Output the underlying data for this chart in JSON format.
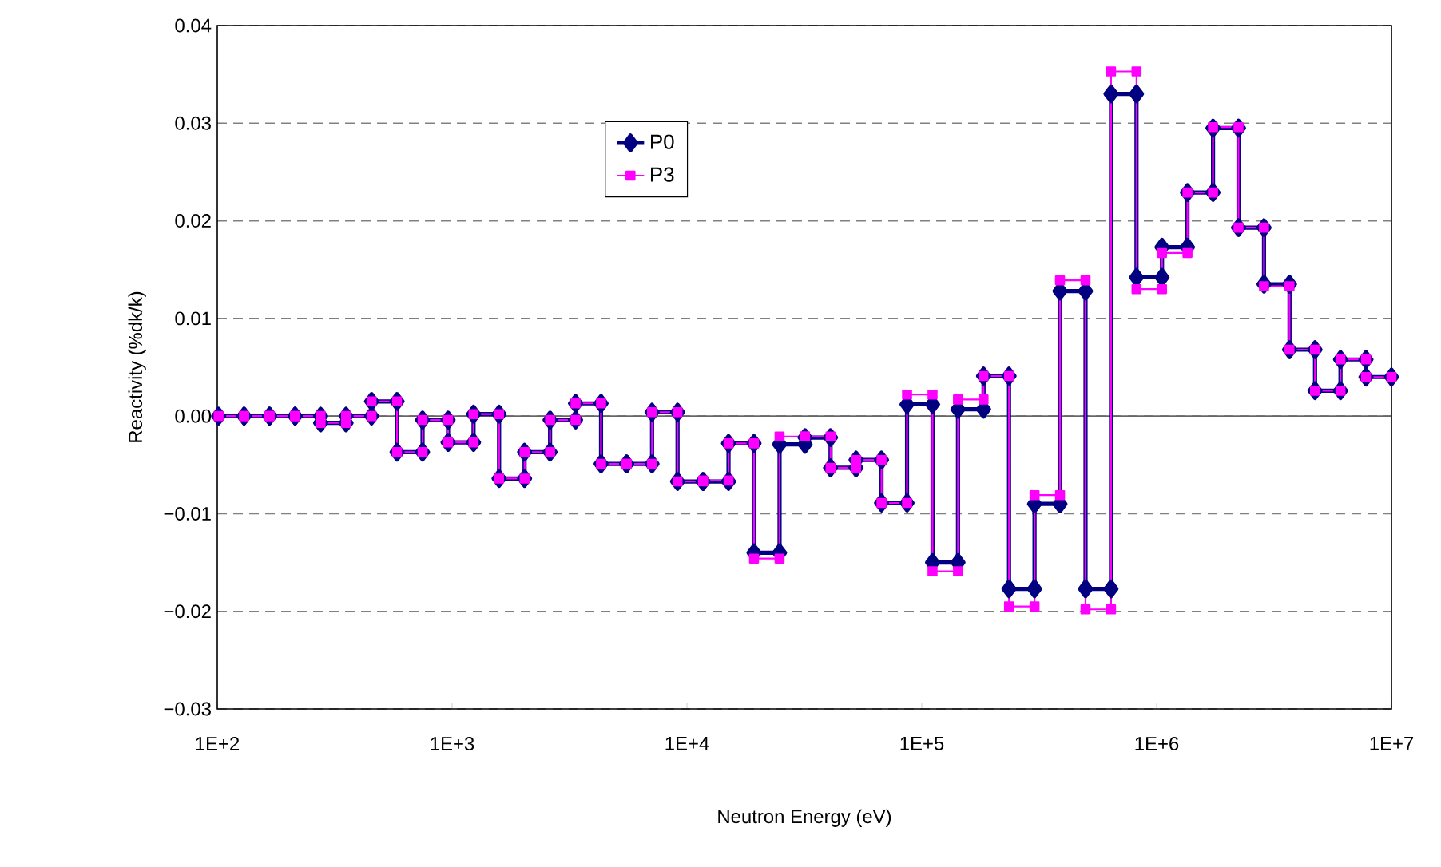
{
  "chart_data": {
    "type": "line",
    "xlabel": "Neutron Energy (eV)",
    "ylabel": "Reactivity (%dk/k)",
    "log": "x",
    "grid": "y",
    "legend": "top",
    "line_style": "solid",
    "xlim": [
      100,
      10000000
    ],
    "ylim": [
      -0.03,
      0.04
    ],
    "xticks": [
      {
        "value": 100,
        "label": "1E+2"
      },
      {
        "value": 1000,
        "label": "1E+3"
      },
      {
        "value": 10000,
        "label": "1E+4"
      },
      {
        "value": 100000,
        "label": "1E+5"
      },
      {
        "value": 1000000,
        "label": "1E+6"
      },
      {
        "value": 10000000,
        "label": "1E+7"
      }
    ],
    "yticks": [
      {
        "value": -0.03,
        "label": "−0.03"
      },
      {
        "value": -0.02,
        "label": "−0.02"
      },
      {
        "value": -0.01,
        "label": "−0.01"
      },
      {
        "value": 0,
        "label": "0.00"
      },
      {
        "value": 0.01,
        "label": "0.01"
      },
      {
        "value": 0.02,
        "label": "0.02"
      },
      {
        "value": 0.03,
        "label": "0.03"
      },
      {
        "value": 0.04,
        "label": "0.04"
      }
    ],
    "x": [
      101.3,
      130.1,
      130.1,
      167.0,
      167.0,
      214.5,
      214.5,
      275.4,
      275.4,
      353.6,
      353.6,
      454.0,
      454.0,
      582.9,
      582.9,
      748.5,
      748.5,
      961.1,
      961.1,
      1234,
      1234,
      1585,
      1585,
      2035,
      2035,
      2613,
      2613,
      3355,
      3355,
      4307,
      4307,
      5531,
      5531,
      7102,
      7102,
      9119,
      9119,
      11710,
      11710,
      15030,
      15030,
      19300,
      19300,
      24790,
      24790,
      31830,
      31830,
      40870,
      40870,
      52480,
      52480,
      67380,
      67380,
      86520,
      86520,
      111100,
      111100,
      142600,
      142600,
      183200,
      183200,
      235200,
      235200,
      302000,
      302000,
      387700,
      387700,
      497900,
      497900,
      639300,
      639300,
      820800,
      820800,
      1054000,
      1054000,
      1353000,
      1353000,
      1738000,
      1738000,
      2231000,
      2231000,
      2865000,
      2865000,
      3679000,
      3679000,
      4724000,
      4724000,
      6065000,
      6065000,
      7788000,
      7788000,
      10000000
    ],
    "series": [
      {
        "name": "P0",
        "color": "#000080",
        "marker": "diamond",
        "values": [
          0,
          0,
          0,
          0,
          0,
          0,
          0,
          0,
          -0.0007,
          -0.0007,
          0,
          0,
          0.0015,
          0.0015,
          -0.0037,
          -0.0037,
          -0.0004,
          -0.0004,
          -0.0027,
          -0.0027,
          0.0002,
          0.0002,
          -0.0064,
          -0.0064,
          -0.0037,
          -0.0037,
          -0.0004,
          -0.0004,
          0.0013,
          0.0013,
          -0.0049,
          -0.0049,
          -0.0049,
          -0.0049,
          0.0004,
          0.0004,
          -0.0067,
          -0.0067,
          -0.0067,
          -0.0067,
          -0.0028,
          -0.0028,
          -0.014,
          -0.014,
          -0.0029,
          -0.0029,
          -0.0022,
          -0.0022,
          -0.0053,
          -0.0053,
          -0.0045,
          -0.0045,
          -0.0089,
          -0.0089,
          0.0012,
          0.0012,
          -0.015,
          -0.015,
          0.0007,
          0.0007,
          0.0041,
          0.0041,
          -0.0177,
          -0.0177,
          -0.009,
          -0.009,
          0.0128,
          0.0128,
          -0.0177,
          -0.0177,
          0.033,
          0.033,
          0.0142,
          0.0142,
          0.0173,
          0.0173,
          0.0229,
          0.0229,
          0.0295,
          0.0295,
          0.0193,
          0.0193,
          0.0135,
          0.0135,
          0.0068,
          0.0068,
          0.0026,
          0.0026,
          0.0058,
          0.0058,
          0.004,
          0.004
        ]
      },
      {
        "name": "P3",
        "color": "#ff00ff",
        "marker": "square",
        "values": [
          0,
          0,
          0,
          0,
          0,
          0,
          0,
          0,
          -0.0007,
          -0.0007,
          0,
          0,
          0.0015,
          0.0015,
          -0.0037,
          -0.0037,
          -0.0004,
          -0.0004,
          -0.0027,
          -0.0027,
          0.0002,
          0.0002,
          -0.0064,
          -0.0064,
          -0.0037,
          -0.0037,
          -0.0004,
          -0.0004,
          0.0013,
          0.0013,
          -0.0049,
          -0.0049,
          -0.0049,
          -0.0049,
          0.0004,
          0.0004,
          -0.0067,
          -0.0067,
          -0.0066,
          -0.0066,
          -0.0028,
          -0.0028,
          -0.0146,
          -0.0146,
          -0.0021,
          -0.0021,
          -0.0021,
          -0.0021,
          -0.0053,
          -0.0053,
          -0.0045,
          -0.0045,
          -0.0089,
          -0.0089,
          0.0022,
          0.0022,
          -0.0159,
          -0.0159,
          0.0017,
          0.0017,
          0.0041,
          0.0041,
          -0.0195,
          -0.0195,
          -0.0081,
          -0.0081,
          0.0139,
          0.0139,
          -0.0198,
          -0.0198,
          0.0353,
          0.0353,
          0.013,
          0.013,
          0.0167,
          0.0167,
          0.0229,
          0.0229,
          0.0296,
          0.0296,
          0.0193,
          0.0193,
          0.0133,
          0.0133,
          0.0068,
          0.0068,
          0.0026,
          0.0026,
          0.0058,
          0.0058,
          0.004,
          0.004
        ]
      }
    ]
  }
}
